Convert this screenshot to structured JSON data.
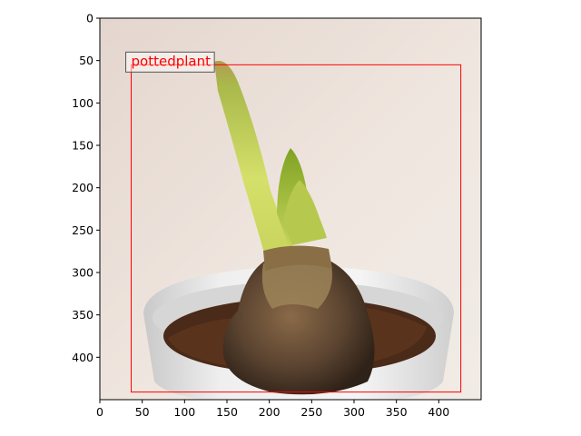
{
  "figure": {
    "image_description_tag": "potted amaryllis bulb in white pot",
    "x_ticks": [
      "0",
      "50",
      "100",
      "150",
      "200",
      "250",
      "300",
      "350",
      "400"
    ],
    "y_ticks": [
      "0",
      "50",
      "100",
      "150",
      "200",
      "250",
      "300",
      "350",
      "400"
    ],
    "x_range": [
      0,
      450
    ],
    "y_range": [
      450,
      0
    ]
  },
  "detection": {
    "label": "pottedplant",
    "box_xyxy": [
      37,
      55,
      426,
      441
    ],
    "box_color": "#ff0000"
  },
  "colors": {
    "wall": "#e9ddd5",
    "pot": "#eeeeee",
    "soil": "#4a2a18",
    "bulb": "#5c4430",
    "leaf_light": "#cbd86a",
    "leaf_dark": "#8fb12a"
  }
}
